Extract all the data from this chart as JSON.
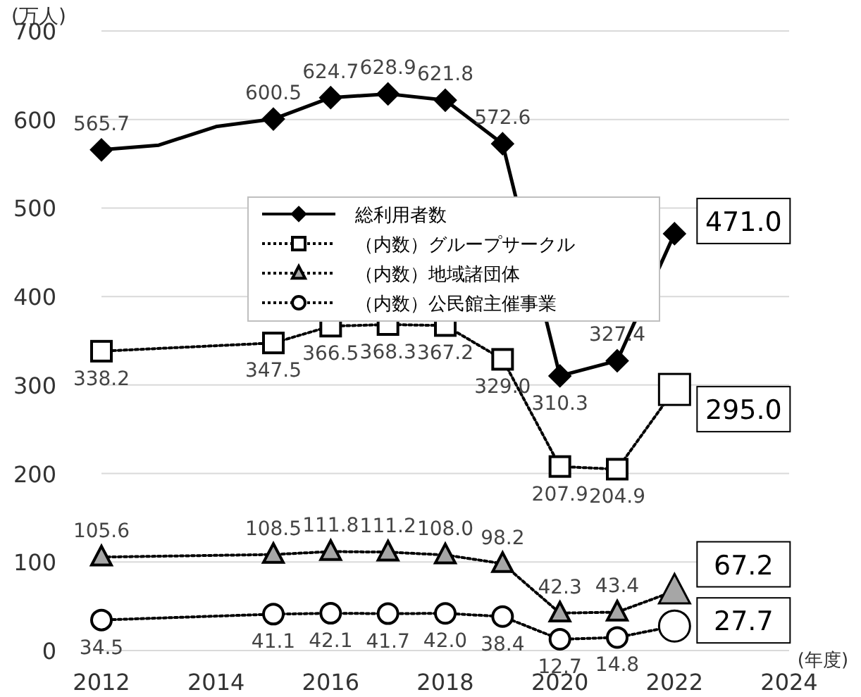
{
  "chart_data": {
    "type": "line",
    "ylabel": "(万人)",
    "xlabel": "(年度)",
    "xlim": [
      2012,
      2024
    ],
    "xticks": [
      2012,
      2014,
      2016,
      2018,
      2020,
      2022,
      2024
    ],
    "ylim": [
      0,
      700
    ],
    "yticks": [
      0,
      100,
      200,
      300,
      400,
      500,
      600,
      700
    ],
    "grid": "y",
    "legend": "top",
    "series": [
      {
        "name": "総利用者数",
        "color": "#000000",
        "marker": "diamond",
        "line_style": "solid",
        "x": [
          2012,
          2013,
          2014,
          2015,
          2016,
          2017,
          2018,
          2019,
          2020,
          2021,
          2022
        ],
        "values": [
          565.7,
          571,
          592,
          600.5,
          624.7,
          628.9,
          621.8,
          572.6,
          310.3,
          327.4,
          471.0
        ],
        "value_labels": [
          "565.7",
          null,
          null,
          "600.5",
          "624.7",
          "628.9",
          "621.8",
          "572.6",
          "310.3",
          "327.4",
          "471.0"
        ]
      },
      {
        "name": "（内数）グループサークル",
        "color": "#ffffff",
        "marker": "square",
        "line_style": "dotted",
        "x": [
          2012,
          2015,
          2016,
          2017,
          2018,
          2019,
          2020,
          2021,
          2022
        ],
        "values": [
          338.2,
          347.5,
          366.5,
          368.3,
          367.2,
          329.0,
          207.9,
          204.9,
          295.0
        ],
        "value_labels": [
          "338.2",
          "347.5",
          "366.5",
          "368.3",
          "367.2",
          "329.0",
          "207.9",
          "204.9",
          "295.0"
        ]
      },
      {
        "name": "（内数）地域諸団体",
        "color": "#a6a6a6",
        "marker": "triangle",
        "line_style": "dotted",
        "x": [
          2012,
          2015,
          2016,
          2017,
          2018,
          2019,
          2020,
          2021,
          2022
        ],
        "values": [
          105.6,
          108.5,
          111.8,
          111.2,
          108.0,
          98.2,
          42.3,
          43.4,
          67.2
        ],
        "value_labels": [
          "105.6",
          "108.5",
          "111.8",
          "111.2",
          "108.0",
          "98.2",
          "42.3",
          "43.4",
          "67.2"
        ]
      },
      {
        "name": "（内数）公民館主催事業",
        "color": "#ffffff",
        "marker": "circle",
        "line_style": "dotted",
        "x": [
          2012,
          2015,
          2016,
          2017,
          2018,
          2019,
          2020,
          2021,
          2022
        ],
        "values": [
          34.5,
          41.1,
          42.1,
          41.7,
          42.0,
          38.4,
          12.7,
          14.8,
          27.7
        ],
        "value_labels": [
          "34.5",
          "41.1",
          "42.1",
          "41.7",
          "42.0",
          "38.4",
          "12.7",
          "14.8",
          "27.7"
        ]
      }
    ]
  }
}
